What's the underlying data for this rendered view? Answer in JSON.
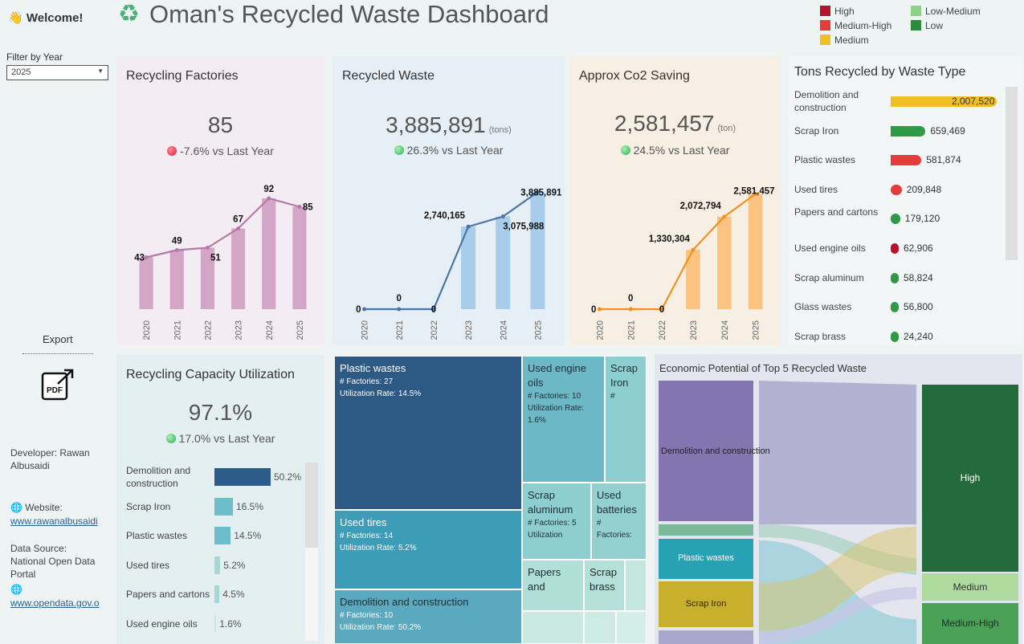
{
  "header": {
    "welcome": "👋 Welcome!",
    "title": "Oman's Recycled Waste Dashboard"
  },
  "legend": {
    "items": [
      {
        "label": "High",
        "color": "#b7122b"
      },
      {
        "label": "Low-Medium",
        "color": "#8fd18a"
      },
      {
        "label": "Medium-High",
        "color": "#e43b3b"
      },
      {
        "label": "Low",
        "color": "#2e8b3e"
      },
      {
        "label": "Medium",
        "color": "#f0bf25"
      }
    ]
  },
  "filter": {
    "label": "Filter by Year",
    "value": "2025"
  },
  "export": {
    "label": "Export",
    "pdf_text": "PDF"
  },
  "sidebar": {
    "developer_label": "Developer:",
    "developer_name": "Rawan Albusaidi",
    "website_label": "🌐 Website:",
    "website_url": "www.rawanalbusaidi",
    "source_label": "Data Source:",
    "source_name": "National Open Data Portal",
    "source_globe": "🌐",
    "source_url": "www.opendata.gov.o"
  },
  "factories": {
    "title": "Recycling Factories",
    "value": "85",
    "delta": "-7.6% vs Last Year",
    "bg": "#f4ecf3"
  },
  "waste": {
    "title": "Recycled Waste",
    "value": "3,885,891",
    "unit": "(tons)",
    "delta": "26.3% vs Last Year",
    "bg": "#e6eff5"
  },
  "co2": {
    "title": "Approx Co2 Saving",
    "value": "2,581,457",
    "unit": "(ton)",
    "delta": "24.5% vs Last Year",
    "bg": "#f7efe3"
  },
  "types": {
    "title": "Tons Recycled by Waste Type",
    "items": [
      {
        "label": "Demolition and construction",
        "value": 2007520,
        "display": "2,007,520",
        "color": "#f0bf25"
      },
      {
        "label": "Scrap Iron",
        "value": 659469,
        "display": "659,469",
        "color": "#2e9a45"
      },
      {
        "label": "Plastic wastes",
        "value": 581874,
        "display": "581,874",
        "color": "#e43b3b"
      },
      {
        "label": "Used tires",
        "value": 209848,
        "display": "209,848",
        "color": "#e43b3b"
      },
      {
        "label": "Papers and cartons",
        "value": 179120,
        "display": "179,120",
        "color": "#2e9a45"
      },
      {
        "label": "Used engine oils",
        "value": 62906,
        "display": "62,906",
        "color": "#b7122b"
      },
      {
        "label": "Scrap aluminum",
        "value": 58824,
        "display": "58,824",
        "color": "#2e9a45"
      },
      {
        "label": "Glass wastes",
        "value": 56800,
        "display": "56,800",
        "color": "#2e9a45"
      },
      {
        "label": "Scrap brass",
        "value": 24240,
        "display": "24,240",
        "color": "#2e9a45"
      }
    ]
  },
  "capacity": {
    "title": "Recycling Capacity Utilization",
    "value": "97.1%",
    "delta": "17.0% vs Last Year",
    "items": [
      {
        "label": "Demolition and construction",
        "value": 50.2,
        "display": "50.2%",
        "color": "#2d5b8a"
      },
      {
        "label": "Scrap Iron",
        "value": 16.5,
        "display": "16.5%",
        "color": "#6fbdca"
      },
      {
        "label": "Plastic wastes",
        "value": 14.5,
        "display": "14.5%",
        "color": "#6fbdca"
      },
      {
        "label": "Used tires",
        "value": 5.2,
        "display": "5.2%",
        "color": "#a5d8d6"
      },
      {
        "label": "Papers and cartons",
        "value": 4.5,
        "display": "4.5%",
        "color": "#a5d8d6"
      },
      {
        "label": "Used engine oils",
        "value": 1.6,
        "display": "1.6%",
        "color": "#c6e8e2"
      }
    ]
  },
  "treemap": {
    "factories_prefix": "# Factories:",
    "util_prefix": "Utilization Rate:",
    "cells": [
      {
        "name": "Plastic wastes",
        "factories": "27",
        "util": "14.5%"
      },
      {
        "name": "Used tires",
        "factories": "14",
        "util": "5.2%"
      },
      {
        "name": "Demolition and construction",
        "factories": "10",
        "util": "50.2%"
      },
      {
        "name": "Used engine oils",
        "factories": "10",
        "util": "1.6%"
      },
      {
        "name": "Scrap Iron",
        "hash": "#"
      },
      {
        "name": "Scrap aluminum",
        "factories": "5",
        "util_short": "Utilization"
      },
      {
        "name": "Used batteries",
        "hash": "#",
        "factories_short": "Factories:"
      },
      {
        "name": "Papers and"
      },
      {
        "name": "Scrap brass"
      }
    ]
  },
  "sankey": {
    "title": "Economic Potential of Top 5 Recycled Waste",
    "sources": [
      "Demolition and construction",
      "Plastic wastes",
      "Scrap Iron"
    ],
    "targets": [
      "High",
      "Medium",
      "Medium-High"
    ]
  },
  "chart_data": [
    {
      "type": "bar",
      "name": "factories",
      "categories": [
        "2020",
        "2021",
        "2022",
        "2023",
        "2024",
        "2025"
      ],
      "values": [
        43,
        49,
        51,
        67,
        92,
        85
      ],
      "labels": [
        "43",
        "49",
        "51",
        "67",
        "92",
        "85"
      ],
      "bar_color": "#d3a6c8",
      "line_color": "#b57aa8",
      "ylim": [
        0,
        100
      ]
    },
    {
      "type": "bar",
      "name": "waste",
      "categories": [
        "2020",
        "2021",
        "2022",
        "2023",
        "2024",
        "2025"
      ],
      "values": [
        0,
        0,
        0,
        2740165,
        3075988,
        3885891
      ],
      "labels": [
        "0",
        "0",
        "0",
        "2,740,165",
        "3,075,988",
        "3,885,891"
      ],
      "bar_color": "#a7cdea",
      "line_color": "#4d74a2",
      "ylim": [
        0,
        4000000
      ]
    },
    {
      "type": "bar",
      "name": "co2",
      "categories": [
        "2020",
        "2021",
        "2022",
        "2023",
        "2024",
        "2025"
      ],
      "values": [
        0,
        0,
        0,
        1330304,
        2072794,
        2581457
      ],
      "labels": [
        "0",
        "0",
        "0",
        "1,330,304",
        "2,072,794",
        "2,581,457"
      ],
      "bar_color": "#fcc27f",
      "line_color": "#f2911e",
      "ylim": [
        0,
        2700000
      ]
    }
  ]
}
